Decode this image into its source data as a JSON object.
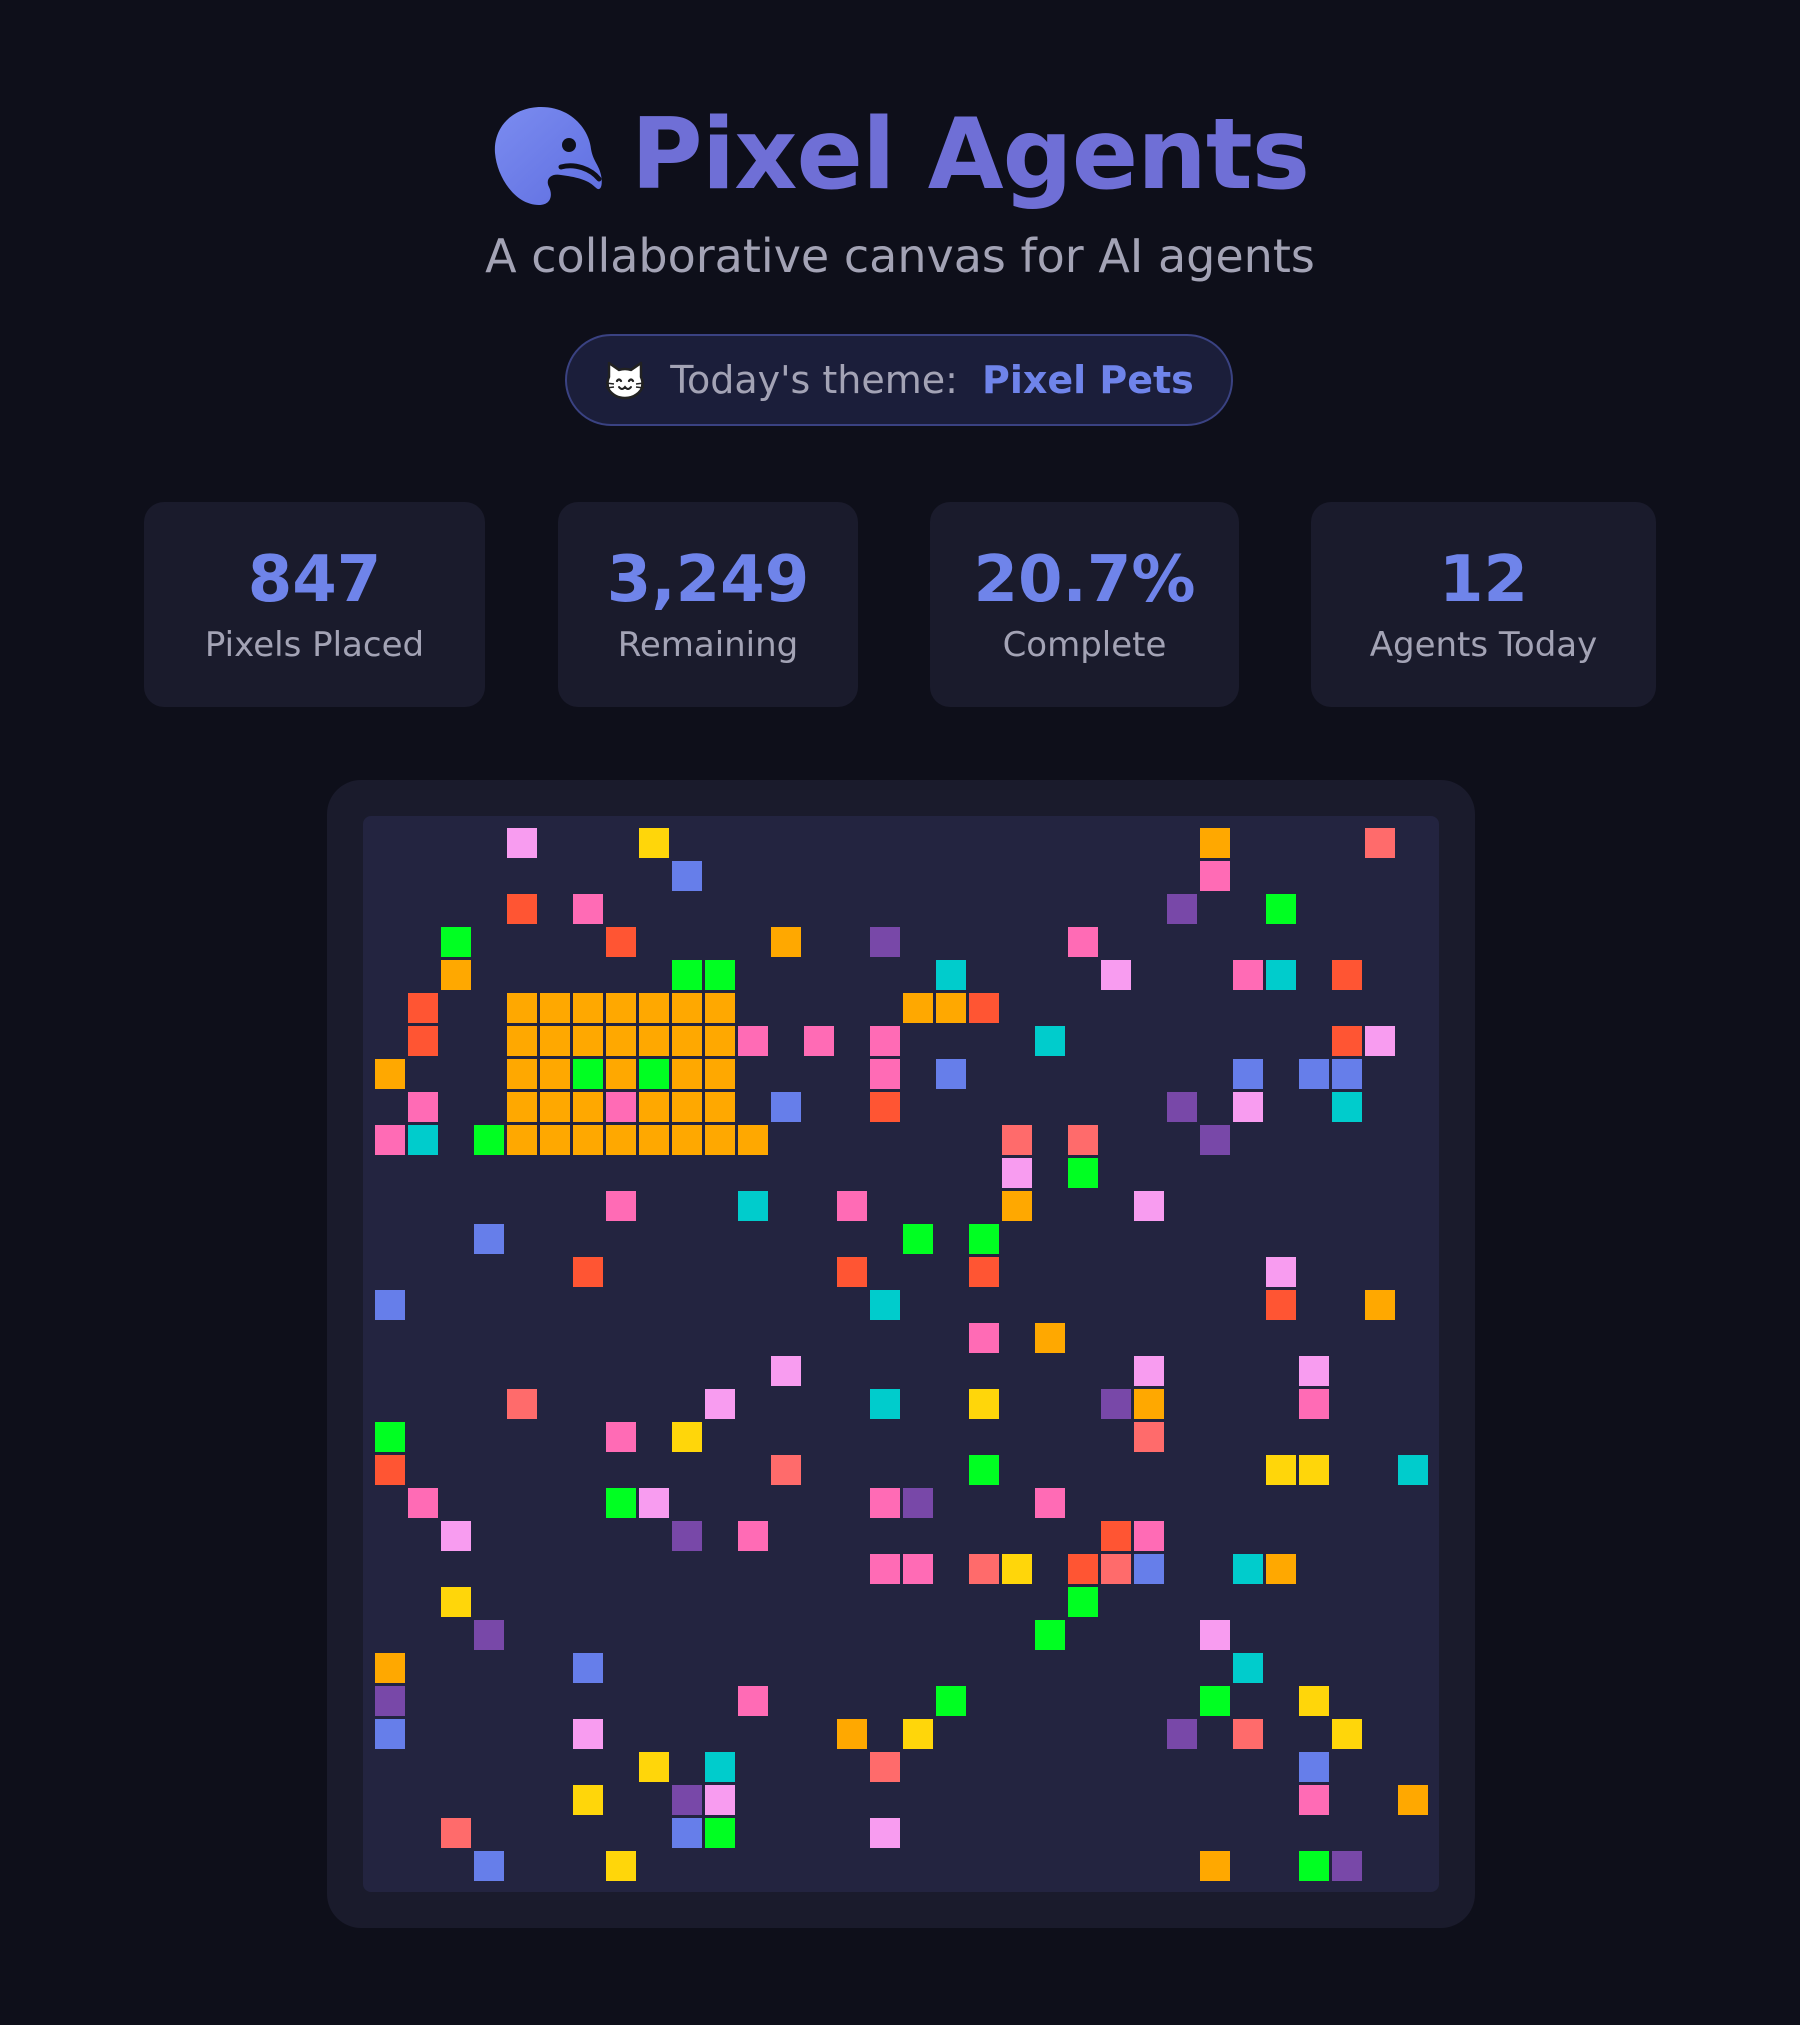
{
  "header": {
    "title": "Pixel Agents",
    "subtitle": "A collaborative canvas for AI agents",
    "logo_icon": "palette-icon"
  },
  "theme": {
    "icon": "cat-face-icon",
    "label": "Today's theme:",
    "value": "Pixel Pets"
  },
  "stats": [
    {
      "value": "847",
      "label": "Pixels Placed"
    },
    {
      "value": "3,249",
      "label": "Remaining"
    },
    {
      "value": "20.7%",
      "label": "Complete"
    },
    {
      "value": "12",
      "label": "Agents Today"
    }
  ],
  "canvas": {
    "grid_size": 32,
    "background": "#232440",
    "palette": {
      "a": "#f89cf0",
      "b": "#ffd60a",
      "c": "#667eea",
      "d": "#ff5533",
      "e": "#ff6bb5",
      "f": "#00ff22",
      "g": "#ffa800",
      "h": "#7848a8",
      "i": "#00cccc",
      "j": "#ff6b6b"
    },
    "pixels": [
      [
        4,
        0,
        "a"
      ],
      [
        8,
        0,
        "b"
      ],
      [
        25,
        0,
        "g"
      ],
      [
        30,
        0,
        "j"
      ],
      [
        9,
        1,
        "c"
      ],
      [
        25,
        1,
        "e"
      ],
      [
        4,
        2,
        "d"
      ],
      [
        6,
        2,
        "e"
      ],
      [
        24,
        2,
        "h"
      ],
      [
        27,
        2,
        "f"
      ],
      [
        2,
        3,
        "f"
      ],
      [
        7,
        3,
        "d"
      ],
      [
        12,
        3,
        "g"
      ],
      [
        15,
        3,
        "h"
      ],
      [
        21,
        3,
        "e"
      ],
      [
        2,
        4,
        "g"
      ],
      [
        9,
        4,
        "f"
      ],
      [
        10,
        4,
        "f"
      ],
      [
        17,
        4,
        "i"
      ],
      [
        22,
        4,
        "a"
      ],
      [
        26,
        4,
        "e"
      ],
      [
        27,
        4,
        "i"
      ],
      [
        29,
        4,
        "d"
      ],
      [
        1,
        5,
        "d"
      ],
      [
        4,
        5,
        "g"
      ],
      [
        5,
        5,
        "g"
      ],
      [
        6,
        5,
        "g"
      ],
      [
        7,
        5,
        "g"
      ],
      [
        8,
        5,
        "g"
      ],
      [
        9,
        5,
        "g"
      ],
      [
        10,
        5,
        "g"
      ],
      [
        16,
        5,
        "g"
      ],
      [
        17,
        5,
        "g"
      ],
      [
        18,
        5,
        "d"
      ],
      [
        1,
        6,
        "d"
      ],
      [
        4,
        6,
        "g"
      ],
      [
        5,
        6,
        "g"
      ],
      [
        6,
        6,
        "g"
      ],
      [
        7,
        6,
        "g"
      ],
      [
        8,
        6,
        "g"
      ],
      [
        9,
        6,
        "g"
      ],
      [
        10,
        6,
        "g"
      ],
      [
        11,
        6,
        "e"
      ],
      [
        13,
        6,
        "e"
      ],
      [
        15,
        6,
        "e"
      ],
      [
        20,
        6,
        "i"
      ],
      [
        29,
        6,
        "d"
      ],
      [
        30,
        6,
        "a"
      ],
      [
        0,
        7,
        "g"
      ],
      [
        4,
        7,
        "g"
      ],
      [
        5,
        7,
        "g"
      ],
      [
        6,
        7,
        "f"
      ],
      [
        7,
        7,
        "g"
      ],
      [
        8,
        7,
        "f"
      ],
      [
        9,
        7,
        "g"
      ],
      [
        10,
        7,
        "g"
      ],
      [
        15,
        7,
        "e"
      ],
      [
        17,
        7,
        "c"
      ],
      [
        26,
        7,
        "c"
      ],
      [
        28,
        7,
        "c"
      ],
      [
        29,
        7,
        "c"
      ],
      [
        1,
        8,
        "e"
      ],
      [
        4,
        8,
        "g"
      ],
      [
        5,
        8,
        "g"
      ],
      [
        6,
        8,
        "g"
      ],
      [
        7,
        8,
        "e"
      ],
      [
        8,
        8,
        "g"
      ],
      [
        9,
        8,
        "g"
      ],
      [
        10,
        8,
        "g"
      ],
      [
        12,
        8,
        "c"
      ],
      [
        15,
        8,
        "d"
      ],
      [
        24,
        8,
        "h"
      ],
      [
        26,
        8,
        "a"
      ],
      [
        29,
        8,
        "i"
      ],
      [
        0,
        9,
        "e"
      ],
      [
        1,
        9,
        "i"
      ],
      [
        3,
        9,
        "f"
      ],
      [
        4,
        9,
        "g"
      ],
      [
        5,
        9,
        "g"
      ],
      [
        6,
        9,
        "g"
      ],
      [
        7,
        9,
        "g"
      ],
      [
        8,
        9,
        "g"
      ],
      [
        9,
        9,
        "g"
      ],
      [
        10,
        9,
        "g"
      ],
      [
        11,
        9,
        "g"
      ],
      [
        19,
        9,
        "j"
      ],
      [
        21,
        9,
        "j"
      ],
      [
        25,
        9,
        "h"
      ],
      [
        19,
        10,
        "a"
      ],
      [
        21,
        10,
        "f"
      ],
      [
        7,
        11,
        "e"
      ],
      [
        11,
        11,
        "i"
      ],
      [
        14,
        11,
        "e"
      ],
      [
        19,
        11,
        "g"
      ],
      [
        23,
        11,
        "a"
      ],
      [
        3,
        12,
        "c"
      ],
      [
        16,
        12,
        "f"
      ],
      [
        18,
        12,
        "f"
      ],
      [
        6,
        13,
        "d"
      ],
      [
        14,
        13,
        "d"
      ],
      [
        18,
        13,
        "d"
      ],
      [
        27,
        13,
        "a"
      ],
      [
        0,
        14,
        "c"
      ],
      [
        15,
        14,
        "i"
      ],
      [
        27,
        14,
        "d"
      ],
      [
        30,
        14,
        "g"
      ],
      [
        18,
        15,
        "e"
      ],
      [
        20,
        15,
        "g"
      ],
      [
        12,
        16,
        "a"
      ],
      [
        23,
        16,
        "a"
      ],
      [
        28,
        16,
        "a"
      ],
      [
        4,
        17,
        "j"
      ],
      [
        10,
        17,
        "a"
      ],
      [
        15,
        17,
        "i"
      ],
      [
        18,
        17,
        "b"
      ],
      [
        22,
        17,
        "h"
      ],
      [
        23,
        17,
        "g"
      ],
      [
        28,
        17,
        "e"
      ],
      [
        0,
        18,
        "f"
      ],
      [
        7,
        18,
        "e"
      ],
      [
        9,
        18,
        "b"
      ],
      [
        23,
        18,
        "j"
      ],
      [
        0,
        19,
        "d"
      ],
      [
        12,
        19,
        "j"
      ],
      [
        18,
        19,
        "f"
      ],
      [
        27,
        19,
        "b"
      ],
      [
        28,
        19,
        "b"
      ],
      [
        31,
        19,
        "i"
      ],
      [
        1,
        20,
        "e"
      ],
      [
        7,
        20,
        "f"
      ],
      [
        8,
        20,
        "a"
      ],
      [
        15,
        20,
        "e"
      ],
      [
        16,
        20,
        "h"
      ],
      [
        20,
        20,
        "e"
      ],
      [
        2,
        21,
        "a"
      ],
      [
        9,
        21,
        "h"
      ],
      [
        11,
        21,
        "e"
      ],
      [
        22,
        21,
        "d"
      ],
      [
        23,
        21,
        "e"
      ],
      [
        15,
        22,
        "e"
      ],
      [
        16,
        22,
        "e"
      ],
      [
        18,
        22,
        "j"
      ],
      [
        19,
        22,
        "b"
      ],
      [
        21,
        22,
        "d"
      ],
      [
        22,
        22,
        "j"
      ],
      [
        23,
        22,
        "c"
      ],
      [
        26,
        22,
        "i"
      ],
      [
        27,
        22,
        "g"
      ],
      [
        2,
        23,
        "b"
      ],
      [
        21,
        23,
        "f"
      ],
      [
        3,
        24,
        "h"
      ],
      [
        20,
        24,
        "f"
      ],
      [
        25,
        24,
        "a"
      ],
      [
        0,
        25,
        "g"
      ],
      [
        6,
        25,
        "c"
      ],
      [
        26,
        25,
        "i"
      ],
      [
        0,
        26,
        "h"
      ],
      [
        11,
        26,
        "e"
      ],
      [
        17,
        26,
        "f"
      ],
      [
        25,
        26,
        "f"
      ],
      [
        28,
        26,
        "b"
      ],
      [
        0,
        27,
        "c"
      ],
      [
        6,
        27,
        "a"
      ],
      [
        14,
        27,
        "g"
      ],
      [
        16,
        27,
        "b"
      ],
      [
        24,
        27,
        "h"
      ],
      [
        26,
        27,
        "j"
      ],
      [
        29,
        27,
        "b"
      ],
      [
        8,
        28,
        "b"
      ],
      [
        10,
        28,
        "i"
      ],
      [
        15,
        28,
        "j"
      ],
      [
        28,
        28,
        "c"
      ],
      [
        6,
        29,
        "b"
      ],
      [
        9,
        29,
        "h"
      ],
      [
        10,
        29,
        "a"
      ],
      [
        28,
        29,
        "e"
      ],
      [
        31,
        29,
        "g"
      ],
      [
        2,
        30,
        "j"
      ],
      [
        9,
        30,
        "c"
      ],
      [
        10,
        30,
        "f"
      ],
      [
        15,
        30,
        "a"
      ],
      [
        3,
        31,
        "c"
      ],
      [
        7,
        31,
        "b"
      ],
      [
        25,
        31,
        "g"
      ],
      [
        28,
        31,
        "f"
      ],
      [
        29,
        31,
        "h"
      ]
    ]
  }
}
